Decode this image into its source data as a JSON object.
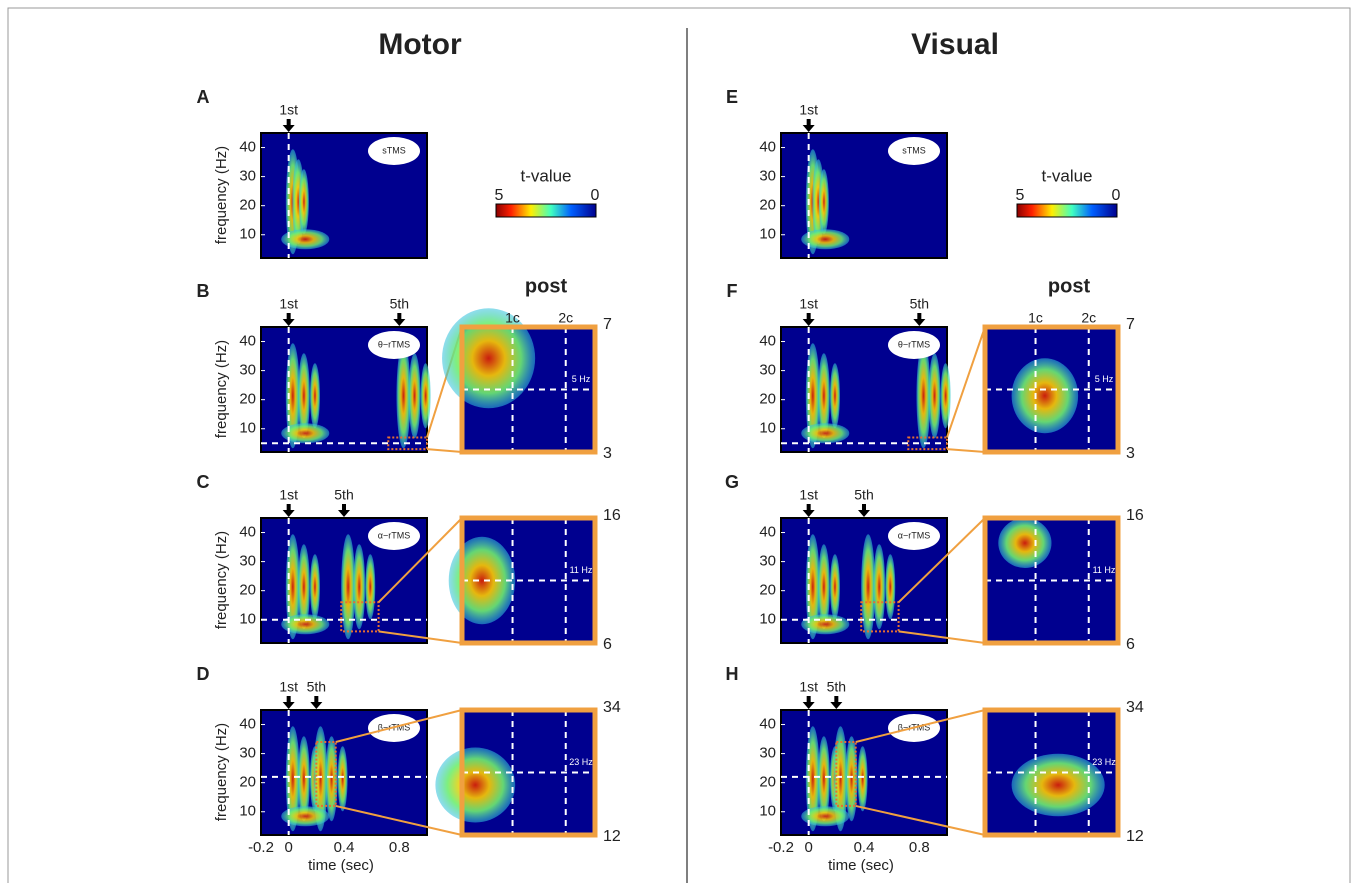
{
  "axes": {
    "y_label": "frequency (Hz)",
    "y_ticks": [
      "10",
      "20",
      "30",
      "40"
    ],
    "x_label": "time (sec)",
    "x_ticks": [
      "-0.2",
      "0",
      "0.4",
      "0.8"
    ]
  },
  "columns": [
    {
      "title": "Motor",
      "colorbar": {
        "title": "t-value",
        "min_label": "5",
        "max_label": "0"
      },
      "post_label": "post",
      "panels": [
        {
          "letter": "A",
          "stim": "sTMS",
          "markers": [
            "1st"
          ]
        },
        {
          "letter": "B",
          "stim": "θ−rTMS",
          "markers": [
            "1st",
            "5th"
          ],
          "zoom": {
            "top": "7",
            "bottom": "3",
            "freq_label": "5 Hz",
            "cycles": [
              "1c",
              "2c"
            ]
          }
        },
        {
          "letter": "C",
          "stim": "α−rTMS",
          "markers": [
            "1st",
            "5th"
          ],
          "zoom": {
            "top": "16",
            "bottom": "6",
            "freq_label": "11 Hz"
          }
        },
        {
          "letter": "D",
          "stim": "β−rTMS",
          "markers": [
            "1st",
            "5th"
          ],
          "zoom": {
            "top": "34",
            "bottom": "12",
            "freq_label": "23 Hz"
          }
        }
      ]
    },
    {
      "title": "Visual",
      "colorbar": {
        "title": "t-value",
        "min_label": "5",
        "max_label": "0"
      },
      "post_label": "post",
      "panels": [
        {
          "letter": "E",
          "stim": "sTMS",
          "markers": [
            "1st"
          ]
        },
        {
          "letter": "F",
          "stim": "θ−rTMS",
          "markers": [
            "1st",
            "5th"
          ],
          "zoom": {
            "top": "7",
            "bottom": "3",
            "freq_label": "5 Hz",
            "cycles": [
              "1c",
              "2c"
            ]
          }
        },
        {
          "letter": "G",
          "stim": "α−rTMS",
          "markers": [
            "1st",
            "5th"
          ],
          "zoom": {
            "top": "16",
            "bottom": "6",
            "freq_label": "11 Hz"
          }
        },
        {
          "letter": "H",
          "stim": "β−rTMS",
          "markers": [
            "1st",
            "5th"
          ],
          "zoom": {
            "top": "34",
            "bottom": "12",
            "freq_label": "23 Hz"
          }
        }
      ]
    }
  ]
}
